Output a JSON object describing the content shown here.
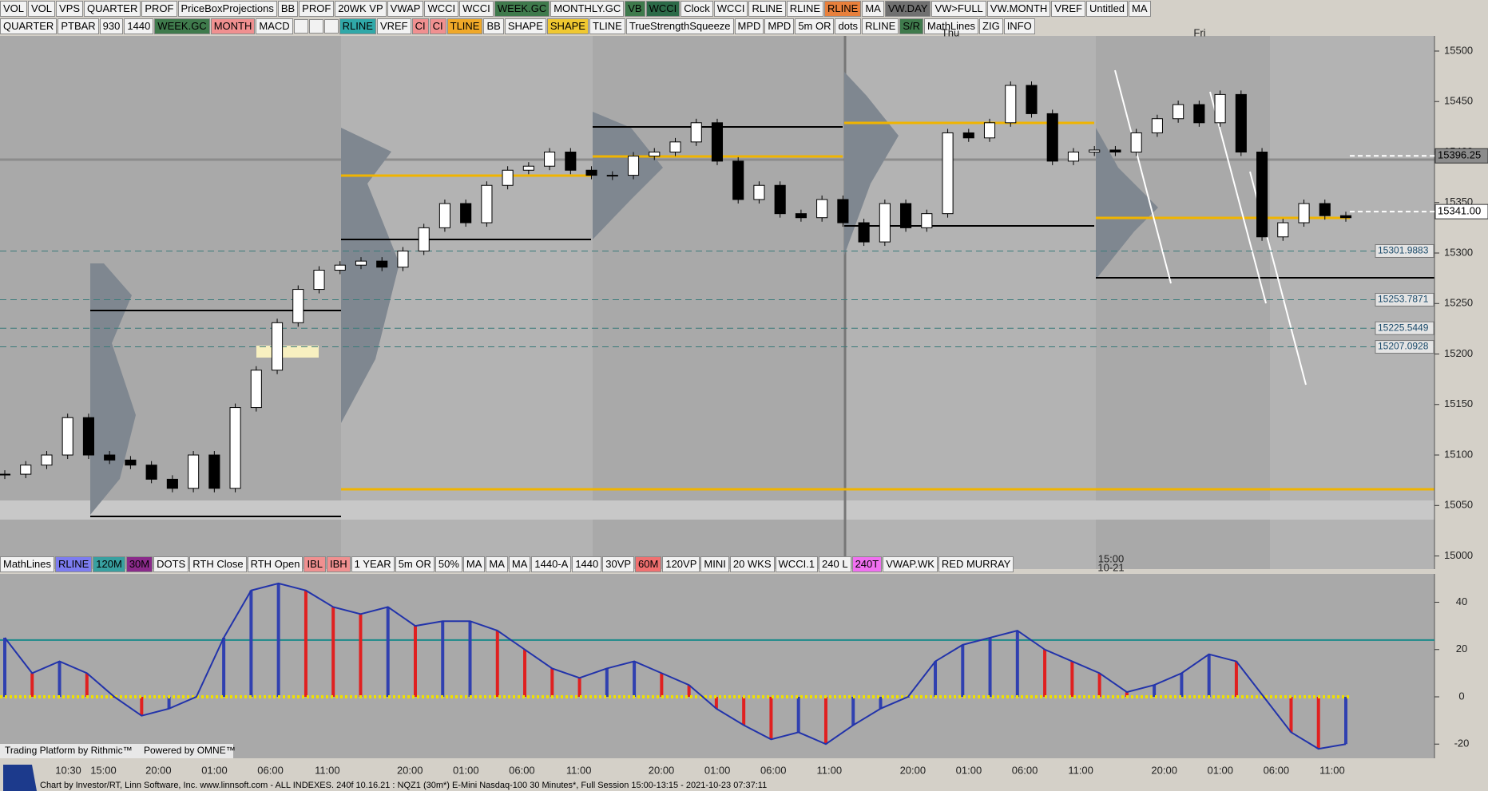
{
  "toolbar_top": [
    "VOL",
    "VOL",
    "VPS",
    "QUARTER",
    "PROF",
    "PriceBoxProjections",
    "BB",
    "PROF",
    "20WK VP",
    "VWAP",
    "WCCI",
    "WCCI",
    "WEEK.GC",
    "MONTHLY.GC",
    "VB",
    "WCCI",
    "Clock",
    "WCCI",
    "RLINE",
    "RLINE",
    "RLINE",
    "MA",
    "VW.DAY",
    "VW>FULL",
    "VW.MONTH",
    "VREF",
    "Untitled",
    "MA"
  ],
  "toolbar_indicators": [
    "QUARTER",
    "PTBAR",
    "930",
    "1440",
    "WEEK.GC",
    "MONTH",
    "MACD",
    "RLINE",
    "VREF",
    "CI",
    "CI",
    "TLINE",
    "BB",
    "SHAPE",
    "SHAPE",
    "TLINE",
    "TrueStrengthSqueeze",
    "MPD",
    "MPD",
    "5m OR",
    "dots",
    "RLINE",
    "S/R",
    "MathLines",
    "ZIG",
    "INFO"
  ],
  "toolbar_bottom": [
    "MathLines",
    "RLINE",
    "120M",
    "30M",
    "DOTS",
    "RTH Close",
    "RTH Open",
    "IBL",
    "IBH",
    "1 YEAR",
    "5m OR",
    "50%",
    "MA",
    "MA",
    "MA",
    "1440-A",
    "1440",
    "30VP",
    "60M",
    "120VP",
    "MINI",
    "20 WKS",
    "WCCI.1",
    "240 L",
    "240T",
    "VWAP.WK",
    "RED MURRAY"
  ],
  "day_labels": [
    "Thu",
    "Fri"
  ],
  "session_marker": {
    "time": "15:00",
    "date": "10-21"
  },
  "watermark": {
    "rithmic": "Trading Platform by Rithmic™",
    "omne": "Powered by OMNE™"
  },
  "time_labels": [
    "10:30",
    "15:00",
    "20:00",
    "01:00",
    "06:00",
    "11:00",
    "20:00",
    "01:00",
    "06:00",
    "11:00",
    "20:00",
    "01:00",
    "06:00",
    "11:00",
    "20:00",
    "01:00",
    "06:00",
    "11:00",
    "20:00",
    "01:00",
    "06:00",
    "11:00"
  ],
  "footer": "Chart by Investor/RT, Linn Software, Inc. www.linnsoft.com - ALL INDEXES. 240f   10.16.21 : NQZ1 (30m*) E-Mini Nasdaq-100 30 Minutes*, Full Session 15:00-13:15 - 2021-10-23 07:37:11",
  "chart_data": [
    {
      "type": "candlestick",
      "values": [
        15081,
        15090,
        15100,
        15137,
        15100,
        15095,
        15090,
        15076,
        15067,
        15100,
        15067,
        15147,
        15184,
        15231,
        15264,
        15283,
        15288,
        15292,
        15286,
        15302,
        15325,
        15349,
        15330,
        15367,
        15382,
        15386,
        15400,
        15382,
        15377,
        15377,
        15396,
        15400,
        15410,
        15429,
        15391,
        15353,
        15367,
        15339,
        15335,
        15353,
        15330,
        15311,
        15349,
        15325,
        15339,
        15419,
        15414,
        15429,
        15466,
        15438,
        15391,
        15400,
        15402,
        15400,
        15419,
        15433,
        15447,
        15429,
        15457,
        15400,
        15316,
        15330,
        15349,
        15337,
        15335
      ],
      "ylim": [
        14987,
        15515
      ],
      "yticks": [
        15000,
        15050,
        15100,
        15150,
        15200,
        15250,
        15300,
        15350,
        15400,
        15450,
        15500
      ],
      "levels": [
        15301.9883,
        15253.7871,
        15225.5449,
        15207.0928
      ],
      "current_prices": [
        15396.25,
        {
          "value": 15341,
          "label": "15341.00"
        }
      ]
    },
    {
      "type": "bar",
      "values": [
        25,
        10,
        15,
        10,
        0,
        -8,
        -5,
        0,
        25,
        45,
        48,
        45,
        38,
        35,
        38,
        30,
        32,
        32,
        28,
        20,
        12,
        8,
        12,
        15,
        10,
        5,
        -5,
        -12,
        -18,
        -15,
        -20,
        -12,
        -5,
        0,
        15,
        22,
        25,
        28,
        20,
        15,
        10,
        2,
        5,
        10,
        18,
        15,
        0,
        -15,
        -22,
        -20
      ],
      "color": "#2233aa",
      "ylim": [
        -26,
        52
      ],
      "yticks": [
        -20,
        0,
        20,
        40
      ],
      "reference_line": 24
    }
  ]
}
